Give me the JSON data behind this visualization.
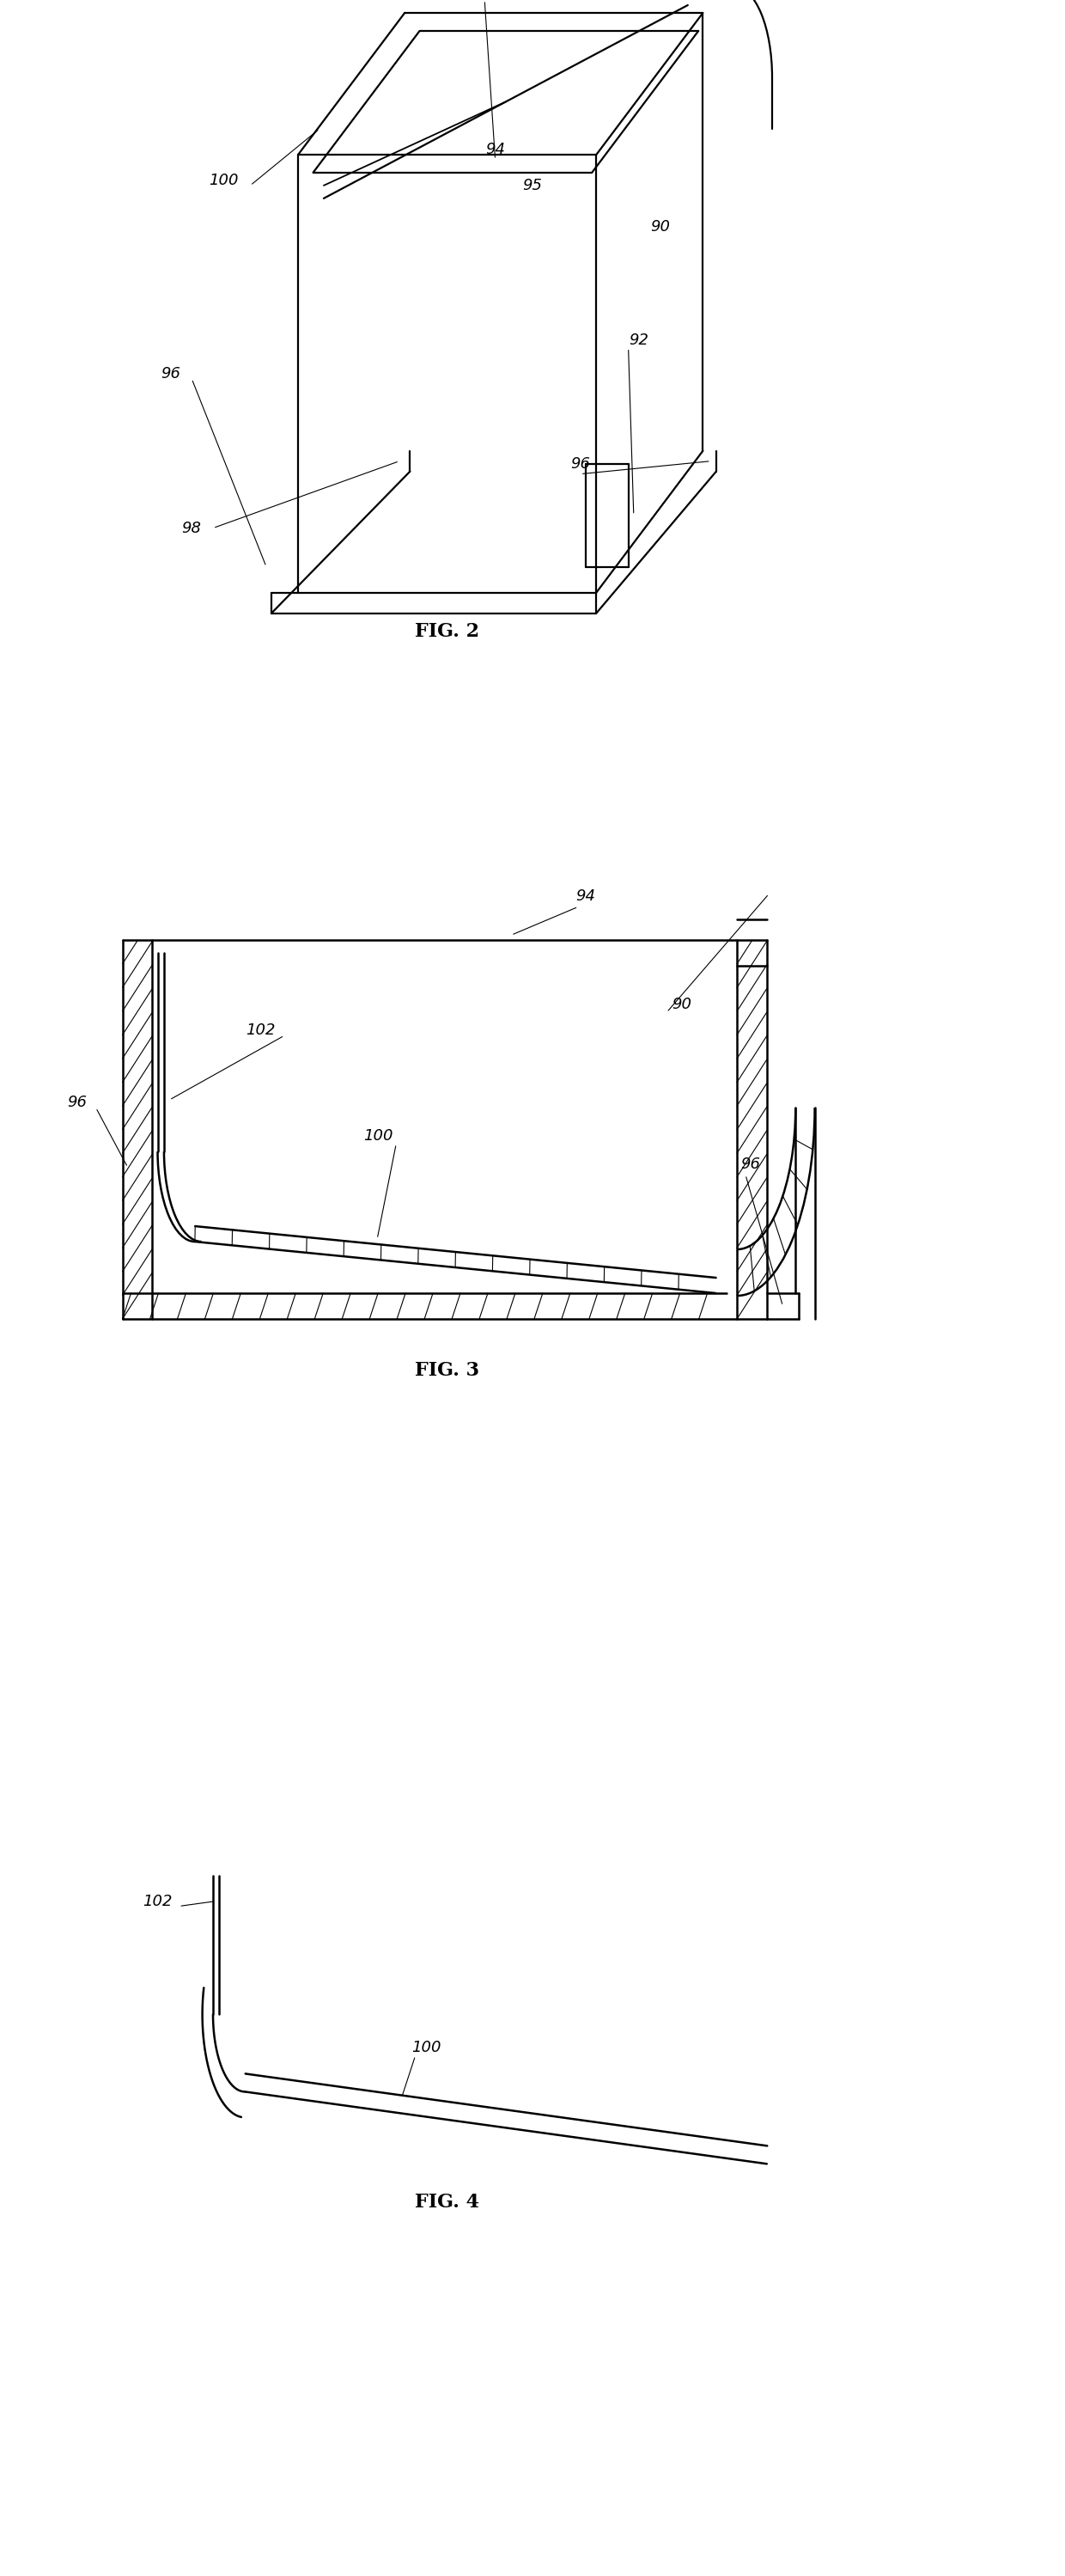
{
  "bg_color": "#ffffff",
  "fig_width": 12.4,
  "fig_height": 29.98,
  "line_color": "#000000",
  "figures": [
    {
      "name": "FIG. 2",
      "ylabel": 0.755
    },
    {
      "name": "FIG. 3",
      "ylabel": 0.468
    },
    {
      "name": "FIG. 4",
      "ylabel": 0.145
    }
  ],
  "label_fontsize": 13,
  "title_fontsize": 16
}
